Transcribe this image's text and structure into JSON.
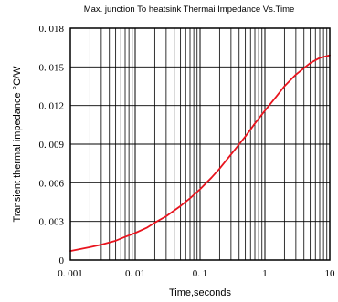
{
  "chart_data": {
    "type": "line",
    "title": "Max. junction To heatsink Thermai Impedance Vs.Time",
    "xlabel": "Time,seconds",
    "ylabel": "Transient thermal impedance °C/W",
    "x_scale": "log",
    "xlim": [
      0.001,
      10
    ],
    "ylim": [
      0,
      0.018
    ],
    "grid": true,
    "x_ticks": [
      {
        "value": 0.001,
        "label": "0. 001"
      },
      {
        "value": 0.01,
        "label": "0. 01"
      },
      {
        "value": 0.1,
        "label": "0. 1"
      },
      {
        "value": 1,
        "label": "1"
      },
      {
        "value": 10,
        "label": "10"
      }
    ],
    "y_ticks": [
      {
        "value": 0,
        "label": "0"
      },
      {
        "value": 0.003,
        "label": "0. 003"
      },
      {
        "value": 0.006,
        "label": "0. 006"
      },
      {
        "value": 0.009,
        "label": "0. 009"
      },
      {
        "value": 0.012,
        "label": "0. 012"
      },
      {
        "value": 0.015,
        "label": "0. 015"
      },
      {
        "value": 0.018,
        "label": "0. 018"
      }
    ],
    "series": [
      {
        "color": "#e8141e",
        "x": [
          0.001,
          0.002,
          0.003,
          0.005,
          0.007,
          0.01,
          0.015,
          0.02,
          0.03,
          0.05,
          0.07,
          0.1,
          0.15,
          0.2,
          0.3,
          0.5,
          0.7,
          1,
          1.5,
          2,
          3,
          5,
          7,
          10
        ],
        "y": [
          0.0007,
          0.001,
          0.0012,
          0.0015,
          0.0018,
          0.0021,
          0.0025,
          0.0029,
          0.0034,
          0.0042,
          0.0048,
          0.0055,
          0.0064,
          0.0071,
          0.0082,
          0.0096,
          0.0106,
          0.0116,
          0.0127,
          0.0135,
          0.0144,
          0.0153,
          0.0157,
          0.0159
        ]
      }
    ]
  }
}
